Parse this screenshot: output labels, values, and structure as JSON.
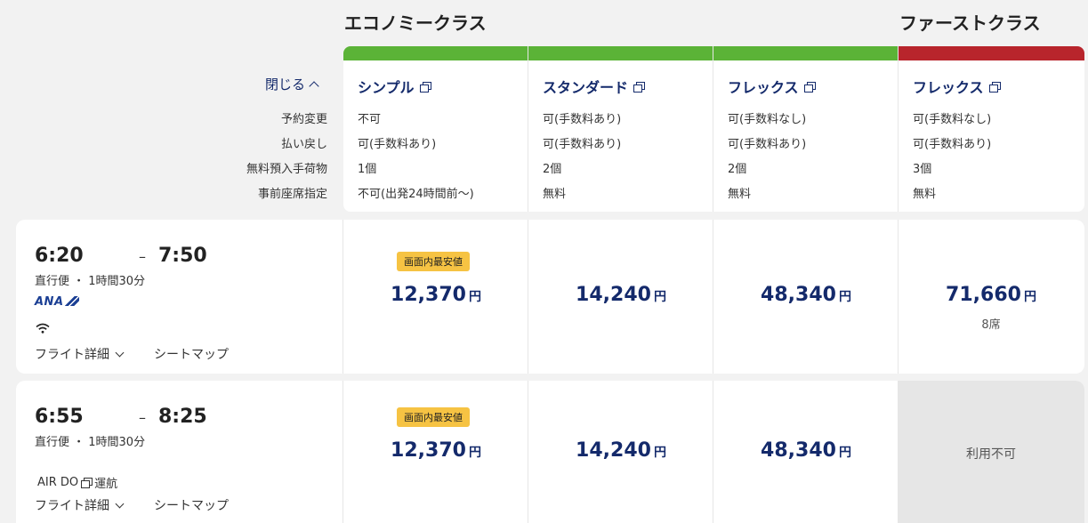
{
  "classes": {
    "economy_title": "エコノミークラス",
    "first_title": "ファーストクラス"
  },
  "controls": {
    "close_label": "閉じる"
  },
  "attributes": [
    "予約変更",
    "払い戻し",
    "無料預入手荷物",
    "事前座席指定"
  ],
  "fares": [
    {
      "name": "シンプル",
      "values": [
        "不可",
        "可(手数料あり)",
        "1個",
        "不可(出発24時間前～)"
      ],
      "bar_color": "#5bb337"
    },
    {
      "name": "スタンダード",
      "values": [
        "可(手数料あり)",
        "可(手数料あり)",
        "2個",
        "無料"
      ],
      "bar_color": "#5bb337"
    },
    {
      "name": "フレックス",
      "values": [
        "可(手数料なし)",
        "可(手数料あり)",
        "2個",
        "無料"
      ],
      "bar_color": "#5bb337"
    },
    {
      "name": "フレックス",
      "values": [
        "可(手数料なし)",
        "可(手数料あり)",
        "3個",
        "無料"
      ],
      "bar_color": "#b8252c"
    }
  ],
  "flights": [
    {
      "depart": "6:20",
      "dash": "–",
      "arrive": "7:50",
      "duration": "直行便 ・ 1時間30分",
      "airline_logo": "ANA",
      "wifi_icon": "wifi-icon",
      "details_label": "フライト詳細",
      "seatmap_label": "シートマップ",
      "badge": "画面内最安値",
      "prices": [
        {
          "amount": "12,370",
          "unit": "円"
        },
        {
          "amount": "14,240",
          "unit": "円"
        },
        {
          "amount": "48,340",
          "unit": "円"
        },
        {
          "amount": "71,660",
          "unit": "円",
          "seats": "8席"
        }
      ]
    },
    {
      "depart": "6:55",
      "dash": "–",
      "arrive": "8:25",
      "duration": "直行便 ・ 1時間30分",
      "operated_by": "AIR DO",
      "operated_suffix": "運航",
      "details_label": "フライト詳細",
      "seatmap_label": "シートマップ",
      "badge": "画面内最安値",
      "prices": [
        {
          "amount": "12,370",
          "unit": "円"
        },
        {
          "amount": "14,240",
          "unit": "円"
        },
        {
          "amount": "48,340",
          "unit": "円"
        }
      ],
      "first_unavailable": "利用不可"
    }
  ]
}
